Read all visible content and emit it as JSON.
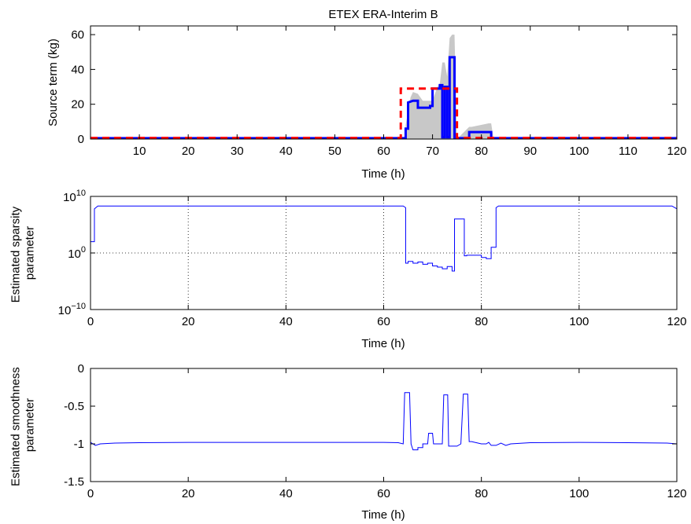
{
  "chart_data": [
    {
      "type": "line",
      "title": "ETEX ERA-Interim B",
      "xlabel": "Time (h)",
      "ylabel": "Source term (kg)",
      "xlim": [
        0,
        120
      ],
      "ylim": [
        0,
        65
      ],
      "xticks": [
        10,
        20,
        30,
        40,
        50,
        60,
        70,
        80,
        90,
        100,
        110,
        120
      ],
      "yticks": [
        0,
        20,
        40,
        60
      ],
      "grid": false,
      "band": {
        "color": "#c8c8c8",
        "points": [
          [
            0,
            0
          ],
          [
            64,
            0
          ],
          [
            64.5,
            0
          ],
          [
            64.5,
            8
          ],
          [
            65.5,
            14
          ],
          [
            66,
            26
          ],
          [
            67,
            26
          ],
          [
            68,
            16
          ],
          [
            70,
            13
          ],
          [
            71,
            20
          ],
          [
            71.5,
            28
          ],
          [
            72,
            44
          ],
          [
            72.5,
            0
          ],
          [
            73,
            0
          ],
          [
            73,
            36
          ],
          [
            73.5,
            58
          ],
          [
            74,
            60
          ],
          [
            74.5,
            6
          ],
          [
            75,
            0
          ],
          [
            77,
            0
          ],
          [
            77.5,
            2
          ],
          [
            78,
            7
          ],
          [
            81.5,
            9
          ],
          [
            82,
            2
          ],
          [
            82.5,
            0
          ],
          [
            120,
            0
          ]
        ],
        "upper": [
          [
            64.5,
            8
          ],
          [
            65.5,
            24
          ],
          [
            66,
            27
          ],
          [
            67,
            26
          ],
          [
            68,
            22
          ],
          [
            70,
            22
          ],
          [
            71,
            30
          ],
          [
            71.5,
            32
          ],
          [
            72,
            44
          ],
          [
            72.5,
            44
          ],
          [
            73,
            36
          ],
          [
            73.5,
            58
          ],
          [
            74,
            60
          ],
          [
            74.5,
            60
          ],
          [
            75,
            0
          ],
          [
            77.5,
            7
          ],
          [
            78,
            7
          ],
          [
            81.5,
            9
          ],
          [
            82,
            9
          ],
          [
            82.5,
            0
          ]
        ]
      },
      "series": [
        {
          "color": "#0000ff",
          "points": [
            [
              0,
              0.5
            ],
            [
              64.5,
              0.5
            ],
            [
              64.5,
              6
            ],
            [
              65,
              6
            ],
            [
              65,
              21
            ],
            [
              66,
              22
            ],
            [
              67,
              22
            ],
            [
              67,
              18
            ],
            [
              69.5,
              18
            ],
            [
              69.5,
              19
            ],
            [
              70,
              19
            ],
            [
              70,
              29
            ],
            [
              71.5,
              29
            ],
            [
              71.5,
              31
            ],
            [
              72,
              31
            ],
            [
              72,
              1
            ],
            [
              72.5,
              1
            ],
            [
              72.5,
              30
            ],
            [
              73,
              30
            ],
            [
              73,
              1
            ],
            [
              73.5,
              1
            ],
            [
              73.5,
              47
            ],
            [
              74.5,
              47
            ],
            [
              74.5,
              0.5
            ],
            [
              77.5,
              0.5
            ],
            [
              77.5,
              4
            ],
            [
              82,
              4
            ],
            [
              82,
              0.5
            ],
            [
              120,
              0.5
            ]
          ]
        },
        {
          "color": "#ff0000",
          "dashed": true,
          "points": [
            [
              0,
              0.6
            ],
            [
              63.5,
              0.6
            ],
            [
              63.5,
              29
            ],
            [
              75,
              29
            ],
            [
              75,
              0.6
            ],
            [
              120,
              0.6
            ]
          ]
        }
      ]
    },
    {
      "type": "line",
      "xlabel": "Time (h)",
      "ylabel": "Estimated sparsity parameter",
      "ylabel_lines": [
        "Estimated sparsity",
        "parameter"
      ],
      "xlim": [
        0,
        120
      ],
      "ylim": [
        -10,
        10
      ],
      "scale_y": "log",
      "xticks": [
        0,
        20,
        40,
        60,
        80,
        100,
        120
      ],
      "yticks": [
        {
          "base": "10",
          "exp": "10",
          "v": 10
        },
        {
          "base": "10",
          "exp": "0",
          "v": 0
        },
        {
          "base": "10",
          "exp": "−10",
          "v": -10
        }
      ],
      "grid": true,
      "series": [
        {
          "color": "#0000ff",
          "points": [
            [
              0,
              2
            ],
            [
              0.8,
              2
            ],
            [
              0.8,
              7.8
            ],
            [
              1.5,
              8.3
            ],
            [
              64,
              8.3
            ],
            [
              64.5,
              8
            ],
            [
              64.5,
              -1.8
            ],
            [
              65,
              -1.8
            ],
            [
              65,
              -1.5
            ],
            [
              66,
              -1.5
            ],
            [
              66,
              -1.8
            ],
            [
              67,
              -1.8
            ],
            [
              67,
              -1.6
            ],
            [
              68,
              -1.6
            ],
            [
              68,
              -2.0
            ],
            [
              69,
              -2.0
            ],
            [
              69,
              -1.8
            ],
            [
              70,
              -1.8
            ],
            [
              70,
              -2.3
            ],
            [
              71,
              -2.3
            ],
            [
              71,
              -2.5
            ],
            [
              72,
              -2.5
            ],
            [
              72,
              -2.8
            ],
            [
              73,
              -2.8
            ],
            [
              73,
              -2.4
            ],
            [
              74,
              -2.4
            ],
            [
              74,
              -3.2
            ],
            [
              74.5,
              -3.2
            ],
            [
              74.5,
              6.0
            ],
            [
              76.5,
              6.0
            ],
            [
              76.5,
              -0.5
            ],
            [
              77,
              -0.5
            ],
            [
              77,
              -0.4
            ],
            [
              80,
              -0.4
            ],
            [
              80,
              -0.8
            ],
            [
              81,
              -0.8
            ],
            [
              81,
              -1.0
            ],
            [
              82,
              -1.0
            ],
            [
              82,
              1.0
            ],
            [
              83,
              1.0
            ],
            [
              83,
              8.0
            ],
            [
              83.5,
              8.3
            ],
            [
              119,
              8.3
            ],
            [
              120,
              7.8
            ]
          ]
        }
      ]
    },
    {
      "type": "line",
      "xlabel": "Time (h)",
      "ylabel": "Estimated smoothness parameter",
      "ylabel_lines": [
        "Estimated smoothness",
        "parameter"
      ],
      "xlim": [
        0,
        120
      ],
      "ylim": [
        -1.5,
        0
      ],
      "xticks": [
        0,
        20,
        40,
        60,
        80,
        100,
        120
      ],
      "yticks": [
        0,
        -0.5,
        -1,
        -1.5
      ],
      "ytick_labels": [
        "0",
        "-0.5",
        "-1",
        "-1.5"
      ],
      "grid": false,
      "series": [
        {
          "color": "#0000ff",
          "points": [
            [
              0,
              -0.98
            ],
            [
              0.5,
              -1.0
            ],
            [
              1,
              -1.02
            ],
            [
              2,
              -1.0
            ],
            [
              5,
              -0.99
            ],
            [
              10,
              -0.985
            ],
            [
              20,
              -0.98
            ],
            [
              40,
              -0.98
            ],
            [
              60,
              -0.98
            ],
            [
              63,
              -0.985
            ],
            [
              64,
              -1.0
            ],
            [
              64.3,
              -0.32
            ],
            [
              65.3,
              -0.32
            ],
            [
              65.6,
              -1.0
            ],
            [
              66,
              -1.08
            ],
            [
              67,
              -1.08
            ],
            [
              67,
              -1.05
            ],
            [
              68,
              -1.05
            ],
            [
              68,
              -1.0
            ],
            [
              69,
              -1.0
            ],
            [
              69.2,
              -0.86
            ],
            [
              70,
              -0.86
            ],
            [
              70.2,
              -1.0
            ],
            [
              71.5,
              -1.0
            ],
            [
              72,
              -1.0
            ],
            [
              72.3,
              -0.35
            ],
            [
              73.1,
              -0.35
            ],
            [
              73.3,
              -1.03
            ],
            [
              75,
              -1.03
            ],
            [
              75.8,
              -1.0
            ],
            [
              76.3,
              -0.34
            ],
            [
              77.2,
              -0.34
            ],
            [
              77.5,
              -0.97
            ],
            [
              78,
              -0.97
            ],
            [
              80,
              -1.0
            ],
            [
              81,
              -1.0
            ],
            [
              81.5,
              -0.98
            ],
            [
              82,
              -1.02
            ],
            [
              83,
              -1.02
            ],
            [
              84,
              -0.99
            ],
            [
              85,
              -1.02
            ],
            [
              86,
              -1.0
            ],
            [
              90,
              -0.985
            ],
            [
              100,
              -0.98
            ],
            [
              110,
              -0.985
            ],
            [
              118,
              -0.99
            ],
            [
              120,
              -1.0
            ]
          ]
        }
      ]
    }
  ]
}
